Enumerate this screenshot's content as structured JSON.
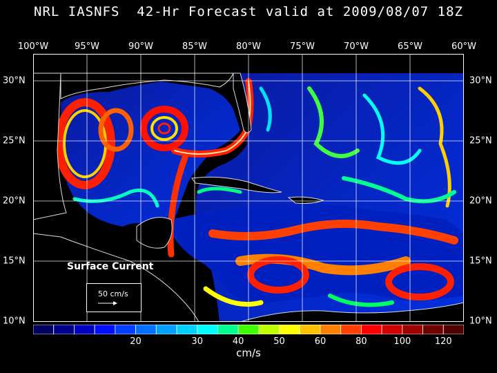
{
  "title": "NRL IASNFS  42-Hr Forecast valid at 2009/08/07 18Z",
  "longitude_labels": [
    "100°W",
    "95°W",
    "90°W",
    "85°W",
    "80°W",
    "75°W",
    "70°W",
    "65°W",
    "60°W"
  ],
  "latitude_labels_left": [
    "30°N",
    "25°N",
    "20°N",
    "15°N",
    "10°N"
  ],
  "latitude_labels_right": [
    "30°N",
    "25°N",
    "20°N",
    "15°N",
    "10°N"
  ],
  "variable_label": "Surface Current",
  "reference_vector_label": "50 cm/s",
  "colorbar": {
    "tick_labels": [
      "20",
      "30",
      "40",
      "50",
      "60",
      "80",
      "100",
      "120"
    ],
    "units": "cm/s",
    "colors": [
      "#000060",
      "#00008c",
      "#0000c0",
      "#0010ff",
      "#0040ff",
      "#0070ff",
      "#00a0ff",
      "#00d0ff",
      "#00ffff",
      "#00ff90",
      "#40ff00",
      "#c0ff00",
      "#ffff00",
      "#ffc000",
      "#ff8000",
      "#ff4000",
      "#ff0000",
      "#d00000",
      "#a00000",
      "#700000",
      "#500000"
    ]
  }
}
